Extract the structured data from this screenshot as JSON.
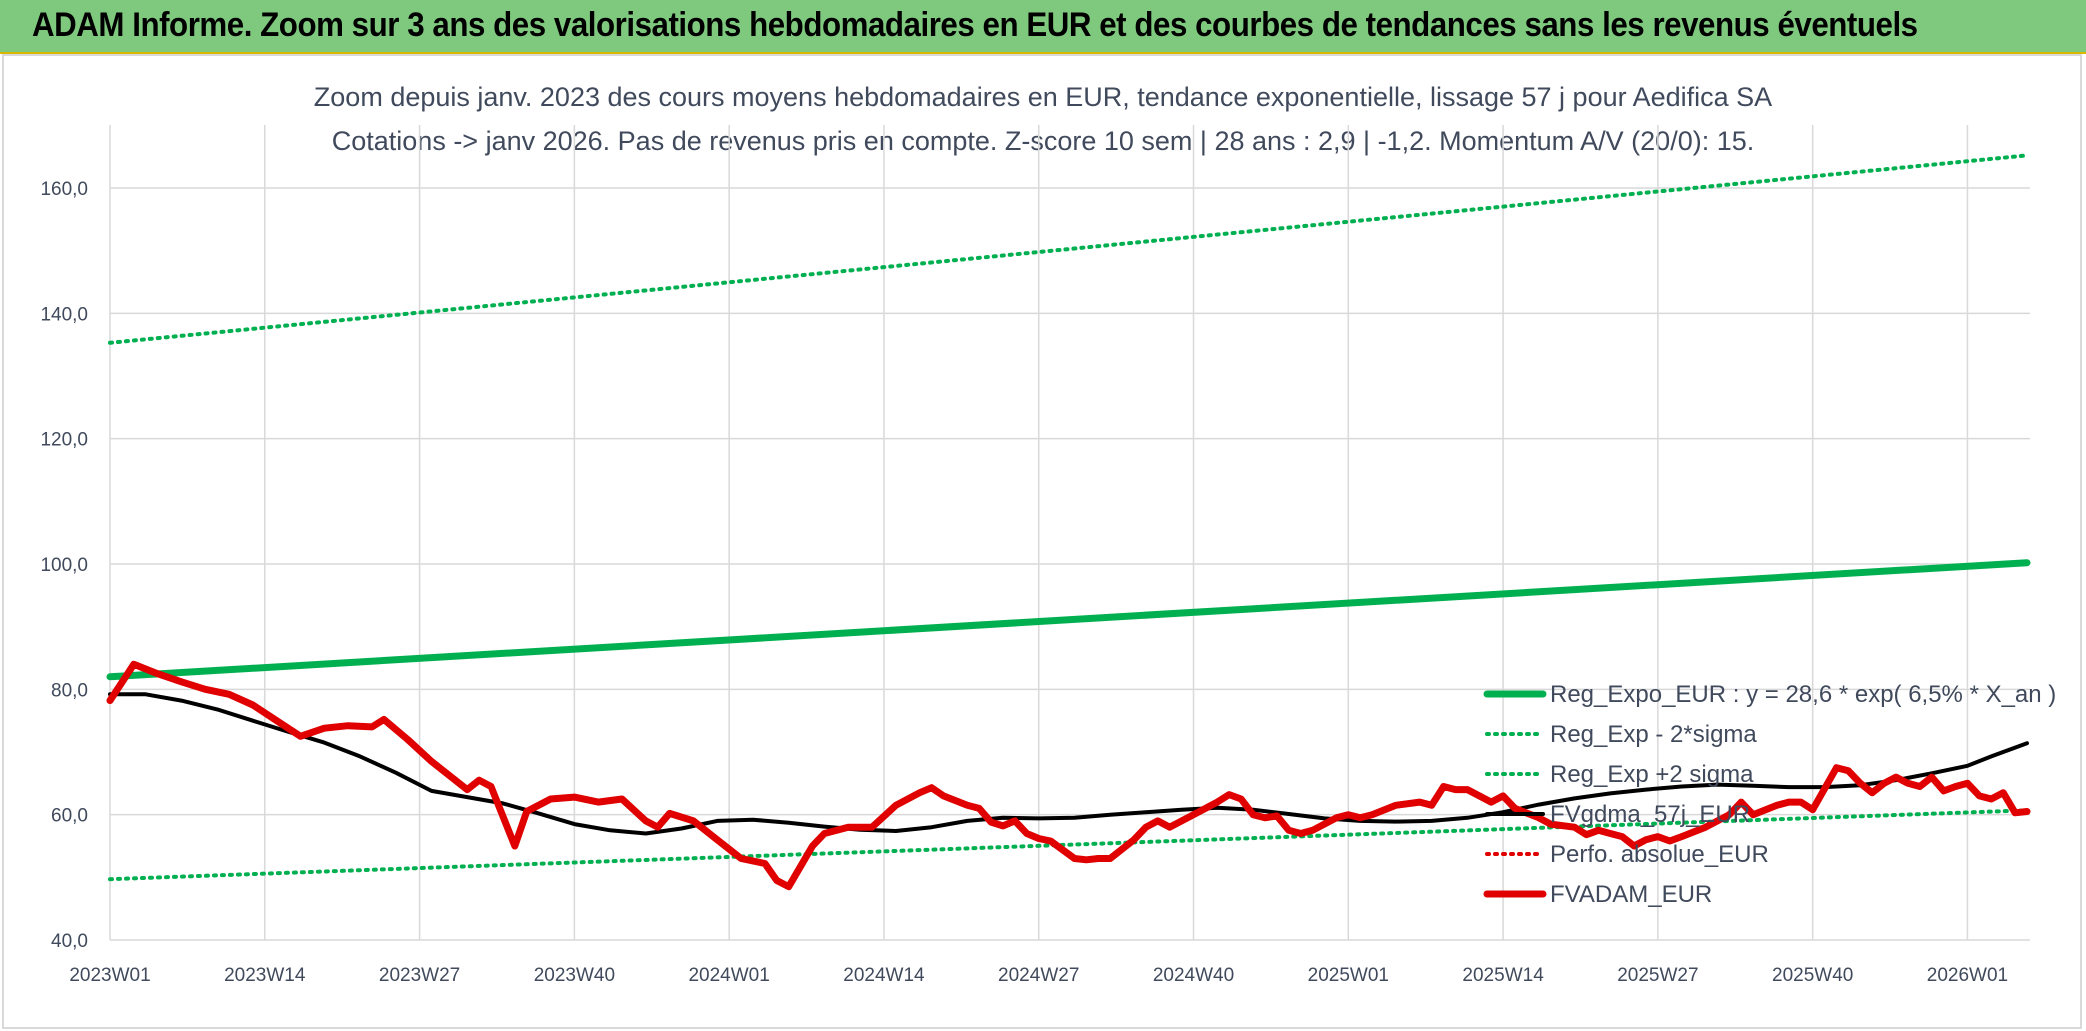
{
  "header": {
    "title": "ADAM Informe. Zoom sur 3 ans des valorisations hebdomadaires en EUR et des courbes de tendances sans les revenus éventuels"
  },
  "chart_data": {
    "type": "line",
    "title": "Zoom depuis janv. 2023 des cours moyens hebdomadaires en EUR, tendance exponentielle, lissage 57 j pour Aedifica SA",
    "subtitle": "Cotations -> janv 2026. Pas de revenus pris en compte. Z-score 10 sem | 28 ans : 2,9 | -1,2. Momentum A/V (20/0): 15.",
    "xlabel": "",
    "ylabel": "",
    "ylim": [
      40,
      170
    ],
    "yticks": [
      "40,0",
      "60,0",
      "80,0",
      "100,0",
      "120,0",
      "140,0",
      "160,0"
    ],
    "xlim": [
      1,
      162
    ],
    "xticks": [
      {
        "x": 1,
        "label": "2023W01"
      },
      {
        "x": 14,
        "label": "2023W14"
      },
      {
        "x": 27,
        "label": "2023W27"
      },
      {
        "x": 40,
        "label": "2023W40"
      },
      {
        "x": 53,
        "label": "2024W01"
      },
      {
        "x": 66,
        "label": "2024W14"
      },
      {
        "x": 79,
        "label": "2024W27"
      },
      {
        "x": 92,
        "label": "2024W40"
      },
      {
        "x": 105,
        "label": "2025W01"
      },
      {
        "x": 118,
        "label": "2025W14"
      },
      {
        "x": 131,
        "label": "2025W27"
      },
      {
        "x": 144,
        "label": "2025W40"
      },
      {
        "x": 157,
        "label": "2026W01"
      }
    ],
    "grid": true,
    "legend_position": "right",
    "series": [
      {
        "name": "Reg_Expo_EUR : y = 28,6 * exp( 6,5% *  X_an )",
        "style": "solid-thick",
        "color": "#00b050",
        "points": [
          [
            1,
            82.0
          ],
          [
            162,
            100.2
          ]
        ]
      },
      {
        "name": "Reg_Exp - 2*sigma",
        "style": "dotted",
        "color": "#00b050",
        "points": [
          [
            1,
            49.7
          ],
          [
            162,
            60.7
          ]
        ]
      },
      {
        "name": "Reg_Exp +2 sigma",
        "style": "dotted",
        "color": "#00b050",
        "points": [
          [
            1,
            135.3
          ],
          [
            162,
            165.2
          ]
        ]
      },
      {
        "name": "FVgdma_57j_EUR",
        "style": "solid",
        "color": "#000000",
        "points": [
          [
            1,
            79.2
          ],
          [
            4,
            79.2
          ],
          [
            7,
            78.2
          ],
          [
            10,
            76.8
          ],
          [
            13,
            75.0
          ],
          [
            16,
            73.2
          ],
          [
            19,
            71.5
          ],
          [
            22,
            69.3
          ],
          [
            25,
            66.7
          ],
          [
            28,
            63.8
          ],
          [
            31,
            62.8
          ],
          [
            34,
            61.8
          ],
          [
            37,
            60.2
          ],
          [
            40,
            58.5
          ],
          [
            43,
            57.5
          ],
          [
            46,
            57.0
          ],
          [
            49,
            57.8
          ],
          [
            52,
            59.0
          ],
          [
            55,
            59.2
          ],
          [
            58,
            58.7
          ],
          [
            61,
            58.1
          ],
          [
            64,
            57.6
          ],
          [
            67,
            57.4
          ],
          [
            70,
            58.0
          ],
          [
            73,
            59.0
          ],
          [
            76,
            59.5
          ],
          [
            79,
            59.4
          ],
          [
            82,
            59.5
          ],
          [
            85,
            60.0
          ],
          [
            88,
            60.4
          ],
          [
            91,
            60.8
          ],
          [
            94,
            61.1
          ],
          [
            97,
            60.8
          ],
          [
            100,
            60.1
          ],
          [
            103,
            59.4
          ],
          [
            106,
            59.0
          ],
          [
            109,
            58.9
          ],
          [
            112,
            59.0
          ],
          [
            115,
            59.5
          ],
          [
            118,
            60.4
          ],
          [
            121,
            61.6
          ],
          [
            124,
            62.6
          ],
          [
            127,
            63.4
          ],
          [
            130,
            64.0
          ],
          [
            133,
            64.5
          ],
          [
            136,
            64.8
          ],
          [
            139,
            64.6
          ],
          [
            142,
            64.4
          ],
          [
            145,
            64.4
          ],
          [
            148,
            64.7
          ],
          [
            151,
            65.5
          ],
          [
            154,
            66.6
          ],
          [
            157,
            67.8
          ],
          [
            159,
            69.3
          ],
          [
            162,
            71.4
          ]
        ]
      },
      {
        "name": "Perfo. absolue_EUR",
        "style": "dotted",
        "color": "#e00000",
        "points": []
      },
      {
        "name": "FVADAM_EUR",
        "style": "solid-thick",
        "color": "#e00000",
        "points": [
          [
            1,
            78.2
          ],
          [
            3,
            84.0
          ],
          [
            5,
            82.5
          ],
          [
            7,
            81.2
          ],
          [
            9,
            80.0
          ],
          [
            11,
            79.2
          ],
          [
            13,
            77.5
          ],
          [
            15,
            75.0
          ],
          [
            17,
            72.5
          ],
          [
            19,
            73.8
          ],
          [
            21,
            74.2
          ],
          [
            23,
            74.0
          ],
          [
            24,
            75.2
          ],
          [
            26,
            72.0
          ],
          [
            28,
            68.5
          ],
          [
            31,
            64.0
          ],
          [
            32,
            65.5
          ],
          [
            33,
            64.5
          ],
          [
            35,
            55.0
          ],
          [
            36,
            60.5
          ],
          [
            38,
            62.5
          ],
          [
            40,
            62.8
          ],
          [
            42,
            62.0
          ],
          [
            44,
            62.5
          ],
          [
            46,
            59.0
          ],
          [
            47,
            58.0
          ],
          [
            48,
            60.2
          ],
          [
            50,
            59.0
          ],
          [
            52,
            56.0
          ],
          [
            54,
            53.0
          ],
          [
            56,
            52.2
          ],
          [
            57,
            49.5
          ],
          [
            58,
            48.5
          ],
          [
            60,
            55.0
          ],
          [
            61,
            57.0
          ],
          [
            63,
            58.0
          ],
          [
            65,
            58.0
          ],
          [
            67,
            61.5
          ],
          [
            69,
            63.5
          ],
          [
            70,
            64.3
          ],
          [
            71,
            63.0
          ],
          [
            73,
            61.5
          ],
          [
            74,
            61.0
          ],
          [
            75,
            58.8
          ],
          [
            76,
            58.2
          ],
          [
            77,
            59.0
          ],
          [
            78,
            57.0
          ],
          [
            79,
            56.2
          ],
          [
            80,
            55.8
          ],
          [
            82,
            53.0
          ],
          [
            83,
            52.8
          ],
          [
            84,
            53.0
          ],
          [
            85,
            53.0
          ],
          [
            87,
            56.0
          ],
          [
            88,
            58.0
          ],
          [
            89,
            59.0
          ],
          [
            90,
            58.0
          ],
          [
            92,
            60.0
          ],
          [
            94,
            62.0
          ],
          [
            95,
            63.2
          ],
          [
            96,
            62.5
          ],
          [
            97,
            60.0
          ],
          [
            98,
            59.5
          ],
          [
            99,
            59.8
          ],
          [
            100,
            57.5
          ],
          [
            101,
            57.0
          ],
          [
            102,
            57.5
          ],
          [
            104,
            59.5
          ],
          [
            105,
            60.0
          ],
          [
            106,
            59.5
          ],
          [
            107,
            60.0
          ],
          [
            109,
            61.5
          ],
          [
            111,
            62.0
          ],
          [
            112,
            61.5
          ],
          [
            113,
            64.5
          ],
          [
            114,
            64.0
          ],
          [
            115,
            64.0
          ],
          [
            116,
            63.0
          ],
          [
            117,
            62.0
          ],
          [
            118,
            63.0
          ],
          [
            119,
            61.0
          ],
          [
            121,
            59.5
          ],
          [
            122,
            58.5
          ],
          [
            124,
            58.0
          ],
          [
            125,
            56.8
          ],
          [
            126,
            57.5
          ],
          [
            127,
            57.0
          ],
          [
            128,
            56.5
          ],
          [
            129,
            55.0
          ],
          [
            130,
            56.0
          ],
          [
            131,
            56.5
          ],
          [
            132,
            55.8
          ],
          [
            133,
            56.5
          ],
          [
            135,
            58.0
          ],
          [
            137,
            60.0
          ],
          [
            138,
            62.0
          ],
          [
            139,
            60.0
          ],
          [
            141,
            61.5
          ],
          [
            142,
            62.0
          ],
          [
            143,
            62.0
          ],
          [
            144,
            60.8
          ],
          [
            146,
            67.5
          ],
          [
            147,
            67.0
          ],
          [
            148,
            65.0
          ],
          [
            149,
            63.5
          ],
          [
            150,
            65.0
          ],
          [
            151,
            66.0
          ],
          [
            152,
            65.0
          ],
          [
            153,
            64.5
          ],
          [
            154,
            66.0
          ],
          [
            155,
            63.8
          ],
          [
            156,
            64.5
          ],
          [
            157,
            65.0
          ],
          [
            158,
            63.0
          ],
          [
            159,
            62.5
          ],
          [
            160,
            63.5
          ],
          [
            161,
            60.3
          ],
          [
            162,
            60.5
          ]
        ]
      }
    ]
  }
}
